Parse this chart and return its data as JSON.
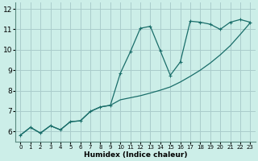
{
  "title": "",
  "xlabel": "Humidex (Indice chaleur)",
  "ylabel": "",
  "bg_color": "#cceee8",
  "grid_color": "#aacccc",
  "line_color": "#1a6e6a",
  "xlim": [
    -0.5,
    23.5
  ],
  "ylim": [
    5.5,
    12.3
  ],
  "xticks": [
    0,
    1,
    2,
    3,
    4,
    5,
    6,
    7,
    8,
    9,
    10,
    11,
    12,
    13,
    14,
    15,
    16,
    17,
    18,
    19,
    20,
    21,
    22,
    23
  ],
  "yticks": [
    6,
    7,
    8,
    9,
    10,
    11,
    12
  ],
  "line1_x": [
    0,
    1,
    2,
    3,
    4,
    5,
    6,
    7,
    8,
    9,
    10,
    11,
    12,
    13,
    14,
    15,
    16,
    17,
    18,
    19,
    20,
    21,
    22,
    23
  ],
  "line1_y": [
    5.82,
    6.2,
    5.92,
    6.28,
    6.08,
    6.48,
    6.52,
    6.98,
    7.2,
    7.28,
    7.55,
    7.65,
    7.75,
    7.88,
    8.02,
    8.18,
    8.42,
    8.7,
    9.0,
    9.35,
    9.75,
    10.2,
    10.75,
    11.32
  ],
  "line2_x": [
    0,
    1,
    2,
    3,
    4,
    5,
    6,
    7,
    8,
    9,
    10,
    11,
    12,
    13,
    14,
    15,
    16,
    17,
    18,
    19,
    20,
    21,
    22,
    23
  ],
  "line2_y": [
    5.82,
    6.2,
    5.92,
    6.28,
    6.08,
    6.48,
    6.52,
    6.98,
    7.2,
    7.28,
    8.85,
    9.9,
    11.05,
    11.15,
    9.95,
    8.75,
    9.4,
    11.4,
    11.35,
    11.25,
    11.0,
    11.35,
    11.48,
    11.35
  ]
}
